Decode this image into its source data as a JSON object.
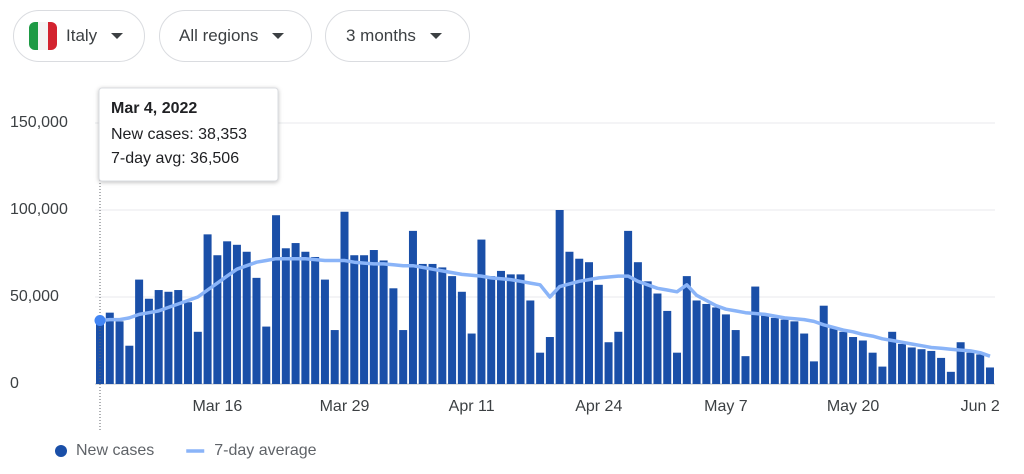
{
  "controls": {
    "country": "Italy",
    "region": "All regions",
    "range": "3 months"
  },
  "chart_data": {
    "type": "bar",
    "categories": [
      null,
      null,
      null,
      null,
      null,
      null,
      null,
      null,
      null,
      null,
      null,
      null,
      "Mar 16",
      null,
      null,
      null,
      null,
      null,
      null,
      null,
      null,
      null,
      null,
      null,
      null,
      "Mar 29",
      null,
      null,
      null,
      null,
      null,
      null,
      null,
      null,
      null,
      null,
      null,
      null,
      "Apr 11",
      null,
      null,
      null,
      null,
      null,
      null,
      null,
      null,
      null,
      null,
      null,
      null,
      "Apr 24",
      null,
      null,
      null,
      null,
      null,
      null,
      null,
      null,
      null,
      null,
      null,
      null,
      "May 7",
      null,
      null,
      null,
      null,
      null,
      null,
      null,
      null,
      null,
      null,
      null,
      null,
      "May 20",
      null,
      null,
      null,
      null,
      null,
      null,
      null,
      null,
      null,
      null,
      null,
      null,
      "Jun 2",
      null
    ],
    "series": [
      {
        "name": "New cases",
        "type": "bar",
        "color": "#1a4fa8",
        "values": [
          38353,
          41000,
          36000,
          22000,
          60000,
          49000,
          54000,
          53000,
          54000,
          47000,
          30000,
          86000,
          74000,
          82000,
          80000,
          76000,
          61000,
          33000,
          97000,
          78000,
          81000,
          76000,
          73000,
          60000,
          31000,
          99000,
          74000,
          74000,
          77000,
          71000,
          55000,
          31000,
          88000,
          69000,
          69000,
          67000,
          62000,
          53000,
          29000,
          83000,
          62000,
          65000,
          63000,
          63000,
          48000,
          18000,
          27000,
          100000,
          76000,
          72000,
          70000,
          57000,
          24000,
          30000,
          88000,
          70000,
          59000,
          52000,
          42000,
          18000,
          62000,
          48000,
          46000,
          44000,
          40000,
          31000,
          16000,
          56000,
          40000,
          38000,
          37000,
          36000,
          29000,
          13000,
          45000,
          32000,
          30000,
          27000,
          25000,
          18000,
          10000,
          30000,
          23000,
          21000,
          20000,
          19000,
          15000,
          7000,
          24000,
          18000,
          17000,
          9500
        ]
      },
      {
        "name": "7-day average",
        "type": "line",
        "color": "#8ab4f8",
        "values": [
          36506,
          37000,
          37000,
          38000,
          40000,
          41000,
          42000,
          44000,
          46000,
          48000,
          50000,
          54000,
          58000,
          62000,
          66000,
          68000,
          70000,
          71000,
          72000,
          72000,
          72000,
          72000,
          71500,
          71000,
          71000,
          71000,
          70000,
          69500,
          69000,
          69000,
          68500,
          68000,
          68000,
          67000,
          66000,
          65000,
          64000,
          63000,
          62500,
          62000,
          61000,
          60500,
          60000,
          59000,
          58000,
          57000,
          50000,
          56000,
          57500,
          59000,
          60000,
          61000,
          61500,
          62000,
          62000,
          59000,
          57000,
          55000,
          54000,
          53000,
          57000,
          51000,
          48000,
          45000,
          43000,
          42000,
          41000,
          40500,
          40000,
          39000,
          38000,
          37500,
          37000,
          36000,
          34000,
          32500,
          31000,
          30000,
          28500,
          27500,
          26000,
          25000,
          24000,
          23000,
          22000,
          21000,
          20500,
          20000,
          19500,
          19000,
          18000,
          16000
        ]
      }
    ],
    "ylim": [
      0,
      160000
    ],
    "yticks": [
      0,
      {
        "value": 50000,
        "label": "50,000"
      },
      {
        "value": 100000,
        "label": "100,000"
      },
      {
        "value": 150000,
        "label": "150,000"
      }
    ],
    "grid": true,
    "tooltip": {
      "title": "Mar 4, 2022",
      "lines": [
        "New cases: 38,353",
        "7-day avg: 36,506"
      ]
    }
  }
}
